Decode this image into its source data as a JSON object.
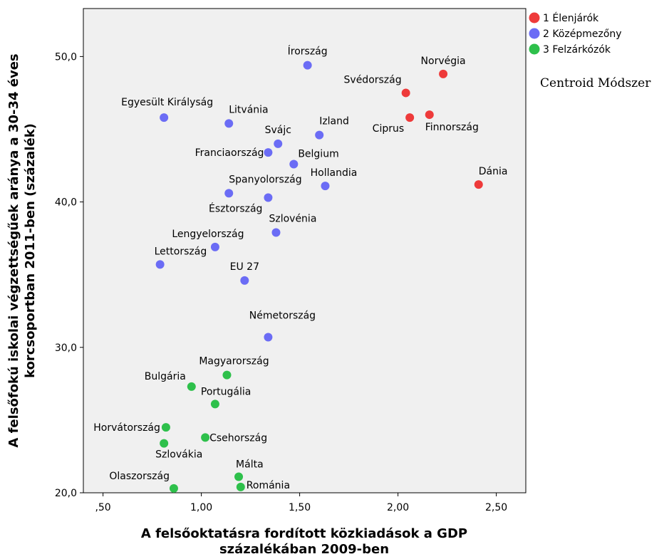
{
  "chart_data": {
    "type": "scatter",
    "xlabel": [
      "A felsőoktatásra fordított közkiadások a GDP",
      "százalékában 2009-ben"
    ],
    "ylabel": [
      "A felsőfokú iskolai végzettségűek aránya a 30-34 éves",
      "korcsoportban 2011-ben (százalék)"
    ],
    "xlim": [
      0.4,
      2.65
    ],
    "ylim": [
      20.0,
      53.3
    ],
    "x_ticks": [
      0.5,
      1.0,
      1.5,
      2.0,
      2.5
    ],
    "x_tick_labels": [
      ",50",
      "1,00",
      "1,50",
      "2,00",
      "2,50"
    ],
    "y_ticks": [
      20,
      30,
      40,
      50
    ],
    "y_tick_labels": [
      "20,0",
      "30,0",
      "40,0",
      "50,0"
    ],
    "grid": false,
    "legend_position": "top-right",
    "annotation": "Centroid Módszer",
    "series": [
      {
        "name": "1 Élenjárók",
        "color": "#ee3a3a",
        "points": [
          {
            "label": "Norvégia",
            "x": 2.23,
            "y": 48.8
          },
          {
            "label": "Svédország",
            "x": 2.04,
            "y": 47.5
          },
          {
            "label": "Ciprus",
            "x": 2.06,
            "y": 45.8
          },
          {
            "label": "Finnország",
            "x": 2.16,
            "y": 46.0
          },
          {
            "label": "Dánia",
            "x": 2.41,
            "y": 41.2
          }
        ]
      },
      {
        "name": "2 Középmezőny",
        "color": "#6b6cf5",
        "points": [
          {
            "label": "Írország",
            "x": 1.54,
            "y": 49.4
          },
          {
            "label": "Egyesült Királyság",
            "x": 0.81,
            "y": 45.8
          },
          {
            "label": "Litvánia",
            "x": 1.14,
            "y": 45.4
          },
          {
            "label": "Izland",
            "x": 1.6,
            "y": 44.6
          },
          {
            "label": "Svájc",
            "x": 1.39,
            "y": 44.0
          },
          {
            "label": "Franciaország",
            "x": 1.34,
            "y": 43.4
          },
          {
            "label": "Belgium",
            "x": 1.47,
            "y": 42.6
          },
          {
            "label": "Hollandia",
            "x": 1.63,
            "y": 41.1
          },
          {
            "label": "Spanyolország",
            "x": 1.14,
            "y": 40.6
          },
          {
            "label": "Észtország",
            "x": 1.34,
            "y": 40.3
          },
          {
            "label": "Szlovénia",
            "x": 1.38,
            "y": 37.9
          },
          {
            "label": "Lengyelország",
            "x": 1.07,
            "y": 36.9
          },
          {
            "label": "Lettország",
            "x": 0.79,
            "y": 35.7
          },
          {
            "label": "EU 27",
            "x": 1.22,
            "y": 34.6
          },
          {
            "label": "Németország",
            "x": 1.34,
            "y": 30.7
          }
        ]
      },
      {
        "name": "3 Felzárkózók",
        "color": "#2ec04b",
        "points": [
          {
            "label": "Magyarország",
            "x": 1.13,
            "y": 28.1
          },
          {
            "label": "Bulgária",
            "x": 0.95,
            "y": 27.3
          },
          {
            "label": "Portugália",
            "x": 1.07,
            "y": 26.1
          },
          {
            "label": "Horvátország",
            "x": 0.82,
            "y": 24.5
          },
          {
            "label": "Szlovákia",
            "x": 0.81,
            "y": 23.4
          },
          {
            "label": "Csehország",
            "x": 1.02,
            "y": 23.8
          },
          {
            "label": "Málta",
            "x": 1.19,
            "y": 21.1
          },
          {
            "label": "Olaszország",
            "x": 0.86,
            "y": 20.3
          },
          {
            "label": "Románia",
            "x": 1.2,
            "y": 20.4
          }
        ]
      }
    ]
  }
}
